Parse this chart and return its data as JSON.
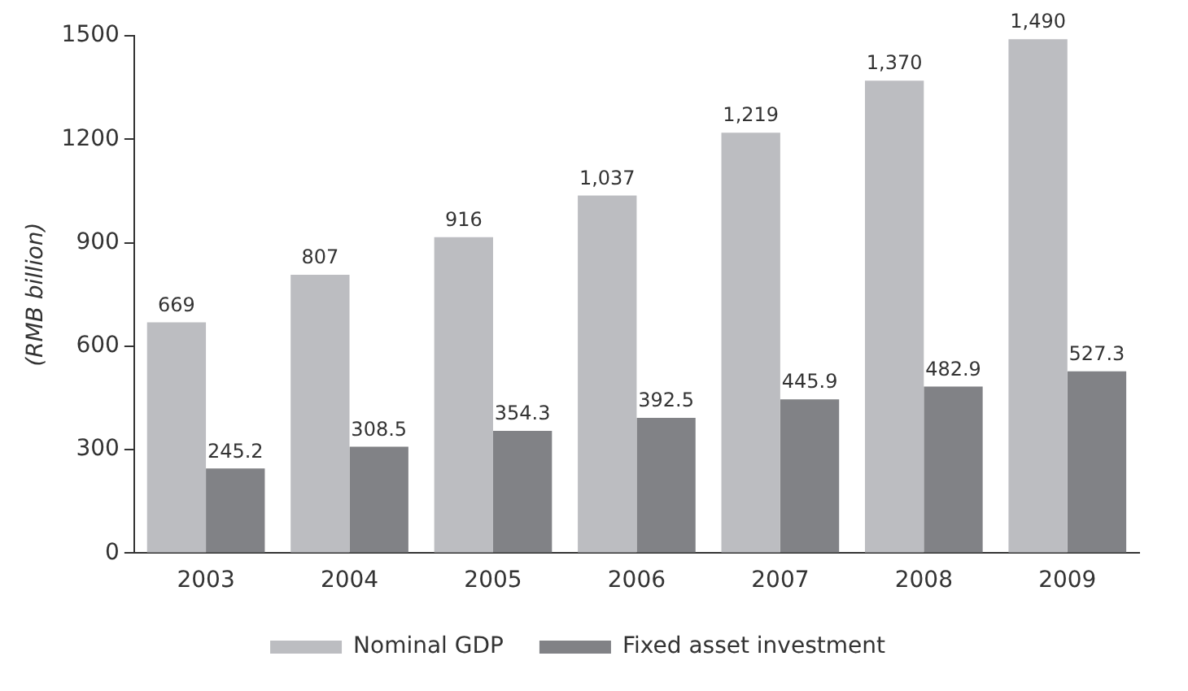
{
  "chart_data": {
    "type": "bar",
    "ylabel": "(RMB billion)",
    "categories": [
      "2003",
      "2004",
      "2005",
      "2006",
      "2007",
      "2008",
      "2009"
    ],
    "series": [
      {
        "name": "Nominal GDP",
        "color": "#bcbdc1",
        "values": [
          669,
          807,
          916,
          1037,
          1219,
          1370,
          1490
        ],
        "value_labels": [
          "669",
          "807",
          "916",
          "1,037",
          "1,219",
          "1,370",
          "1,490"
        ]
      },
      {
        "name": "Fixed asset investment",
        "color": "#818286",
        "values": [
          245.2,
          308.5,
          354.3,
          392.5,
          445.9,
          482.9,
          527.3
        ],
        "value_labels": [
          "245.2",
          "308.5",
          "354.3",
          "392.5",
          "445.9",
          "482.9",
          "527.3"
        ]
      }
    ],
    "ylim": [
      0,
      1500
    ],
    "yticks": [
      0,
      300,
      600,
      900,
      1200,
      1500
    ],
    "legend": "bottom"
  }
}
